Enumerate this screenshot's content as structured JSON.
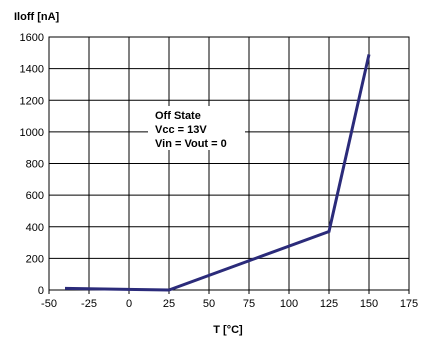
{
  "chart_data": {
    "type": "line",
    "title": "",
    "ylabel": "Iloff [nA]",
    "xlabel": "T [°C]",
    "xlim": [
      -50,
      175
    ],
    "ylim": [
      0,
      1600
    ],
    "x_ticks": [
      -50,
      -25,
      0,
      25,
      50,
      75,
      100,
      125,
      150,
      175
    ],
    "y_ticks": [
      0,
      200,
      400,
      600,
      800,
      1000,
      1200,
      1400,
      1600
    ],
    "grid": true,
    "legend": "none",
    "series": [
      {
        "x": [
          -40,
          25,
          125,
          150
        ],
        "y": [
          10,
          0,
          370,
          1490
        ],
        "color": "#2b2b7a"
      }
    ],
    "annotation": [
      "Off State",
      "Vcc = 13V",
      "Vin = Vout = 0"
    ]
  }
}
